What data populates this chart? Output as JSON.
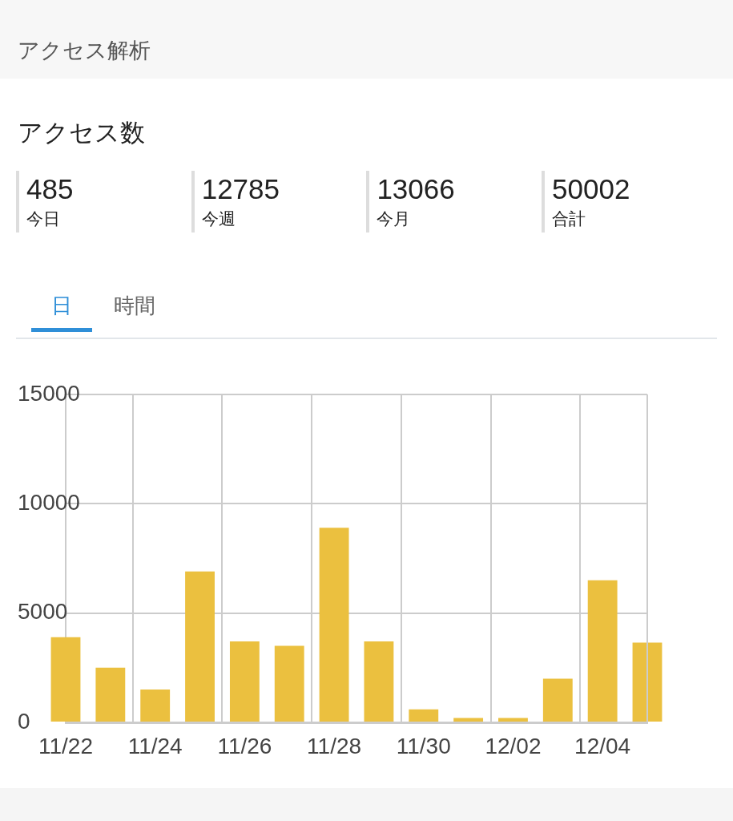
{
  "chart_data": {
    "type": "bar",
    "title": "アクセス解析",
    "subtitle": "アクセス数",
    "annotations": [
      "485",
      "今日",
      "12785",
      "今週",
      "13066",
      "今月",
      "50002",
      "合計",
      "日",
      "時間"
    ],
    "categories": [
      "11/22",
      null,
      "11/24",
      null,
      "11/26",
      null,
      "11/28",
      null,
      "11/30",
      null,
      "12/02",
      null,
      "12/04",
      null
    ],
    "values": [
      3900,
      2500,
      1500,
      6900,
      3700,
      3500,
      8900,
      3700,
      600,
      200,
      200,
      2000,
      6500,
      3650
    ],
    "color": "#ebc03f",
    "ylim": [
      0,
      15000
    ],
    "yticks": [
      0,
      5000,
      10000,
      15000
    ],
    "grid": true
  }
}
